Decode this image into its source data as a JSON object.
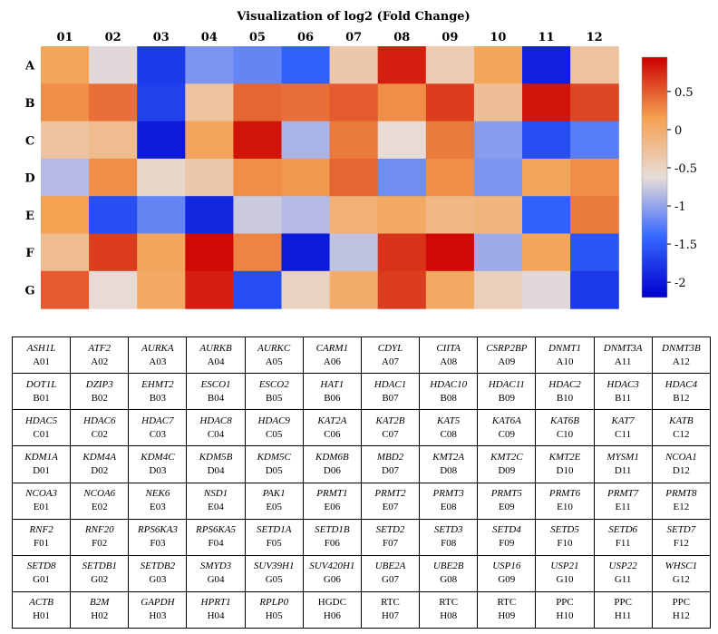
{
  "chart_data": {
    "type": "heatmap",
    "title": "Visualization of log2 (Fold Change)",
    "columns": [
      "01",
      "02",
      "03",
      "04",
      "05",
      "06",
      "07",
      "08",
      "09",
      "10",
      "11",
      "12"
    ],
    "rows": [
      "A",
      "B",
      "C",
      "D",
      "E",
      "F",
      "G"
    ],
    "values": [
      [
        0.1,
        -0.65,
        -1.75,
        -1.1,
        -1.2,
        -1.45,
        -0.35,
        0.8,
        -0.4,
        0.1,
        -1.95,
        -0.3
      ],
      [
        0.25,
        0.4,
        -1.7,
        -0.3,
        0.45,
        0.4,
        0.5,
        0.25,
        0.65,
        -0.25,
        0.85,
        0.6
      ],
      [
        -0.3,
        -0.2,
        -2.0,
        0.1,
        0.85,
        -0.9,
        0.35,
        -0.6,
        0.35,
        -1.05,
        -1.6,
        -1.25
      ],
      [
        -0.85,
        0.25,
        -0.55,
        -0.35,
        0.25,
        0.2,
        0.45,
        -1.15,
        0.25,
        -1.1,
        0.1,
        0.25
      ],
      [
        0.15,
        -1.6,
        -1.2,
        -1.9,
        -0.75,
        -0.85,
        -0.05,
        0.05,
        -0.15,
        -0.1,
        -1.45,
        0.35
      ],
      [
        -0.2,
        0.65,
        0.1,
        0.9,
        0.3,
        -2.0,
        -0.8,
        0.7,
        0.9,
        -0.95,
        0.1,
        -1.55
      ],
      [
        0.5,
        -0.6,
        0.05,
        0.8,
        -1.6,
        -0.5,
        0.0,
        0.65,
        0.05,
        -0.45,
        -0.65,
        -1.75
      ]
    ],
    "zlim": [
      -2.2,
      0.95
    ],
    "colorbar_ticks": [
      0.5,
      0,
      -0.5,
      -1,
      -1.5,
      -2
    ],
    "colorbar_labels": [
      "0.5",
      "0",
      "-0.5",
      "-1",
      "-1.5",
      "-2"
    ],
    "colormap": [
      "#0000cc",
      "#3366ff",
      "#e8dcd8",
      "#f4a050",
      "#cc0000"
    ]
  },
  "plate_map": [
    [
      [
        "ASH1L",
        "A01"
      ],
      [
        "ATF2",
        "A02"
      ],
      [
        "AURKA",
        "A03"
      ],
      [
        "AURKB",
        "A04"
      ],
      [
        "AURKC",
        "A05"
      ],
      [
        "CARM1",
        "A06"
      ],
      [
        "CDYL",
        "A07"
      ],
      [
        "CIITA",
        "A08"
      ],
      [
        "CSRP2BP",
        "A09"
      ],
      [
        "DNMT1",
        "A10"
      ],
      [
        "DNMT3A",
        "A11"
      ],
      [
        "DNMT3B",
        "A12"
      ]
    ],
    [
      [
        "DOT1L",
        "B01"
      ],
      [
        "DZIP3",
        "B02"
      ],
      [
        "EHMT2",
        "B03"
      ],
      [
        "ESCO1",
        "B04"
      ],
      [
        "ESCO2",
        "B05"
      ],
      [
        "HAT1",
        "B06"
      ],
      [
        "HDAC1",
        "B07"
      ],
      [
        "HDAC10",
        "B08"
      ],
      [
        "HDAC11",
        "B09"
      ],
      [
        "HDAC2",
        "B10"
      ],
      [
        "HDAC3",
        "B11"
      ],
      [
        "HDAC4",
        "B12"
      ]
    ],
    [
      [
        "HDAC5",
        "C01"
      ],
      [
        "HDAC6",
        "C02"
      ],
      [
        "HDAC7",
        "C03"
      ],
      [
        "HDAC8",
        "C04"
      ],
      [
        "HDAC9",
        "C05"
      ],
      [
        "KAT2A",
        "C06"
      ],
      [
        "KAT2B",
        "C07"
      ],
      [
        "KAT5",
        "C08"
      ],
      [
        "KAT6A",
        "C09"
      ],
      [
        "KAT6B",
        "C10"
      ],
      [
        "KAT7",
        "C11"
      ],
      [
        "KATB",
        "C12"
      ]
    ],
    [
      [
        "KDM1A",
        "D01"
      ],
      [
        "KDM4A",
        "D02"
      ],
      [
        "KDM4C",
        "D03"
      ],
      [
        "KDM5B",
        "D04"
      ],
      [
        "KDM5C",
        "D05"
      ],
      [
        "KDM6B",
        "D06"
      ],
      [
        "MBD2",
        "D07"
      ],
      [
        "KMT2A",
        "D08"
      ],
      [
        "KMT2C",
        "D09"
      ],
      [
        "KMT2E",
        "D10"
      ],
      [
        "MYSM1",
        "D11"
      ],
      [
        "NCOA1",
        "D12"
      ]
    ],
    [
      [
        "NCOA3",
        "E01"
      ],
      [
        "NCOA6",
        "E02"
      ],
      [
        "NEK6",
        "E03"
      ],
      [
        "NSD1",
        "E04"
      ],
      [
        "PAK1",
        "E05"
      ],
      [
        "PRMT1",
        "E06"
      ],
      [
        "PRMT2",
        "E07"
      ],
      [
        "PRMT3",
        "E08"
      ],
      [
        "PRMT5",
        "E09"
      ],
      [
        "PRMT6",
        "E10"
      ],
      [
        "PRMT7",
        "E11"
      ],
      [
        "PRMT8",
        "E12"
      ]
    ],
    [
      [
        "RNF2",
        "F01"
      ],
      [
        "RNF20",
        "F02"
      ],
      [
        "RPS6KA3",
        "F03"
      ],
      [
        "RPS6KA5",
        "F04"
      ],
      [
        "SETD1A",
        "F05"
      ],
      [
        "SETD1B",
        "F06"
      ],
      [
        "SETD2",
        "F07"
      ],
      [
        "SETD3",
        "F08"
      ],
      [
        "SETD4",
        "F09"
      ],
      [
        "SETD5",
        "F10"
      ],
      [
        "SETD6",
        "F11"
      ],
      [
        "SETD7",
        "F12"
      ]
    ],
    [
      [
        "SETD8",
        "G01"
      ],
      [
        "SETDB1",
        "G02"
      ],
      [
        "SETDB2",
        "G03"
      ],
      [
        "SMYD3",
        "G04"
      ],
      [
        "SUV39H1",
        "G05"
      ],
      [
        "SUV420H1",
        "G06"
      ],
      [
        "UBE2A",
        "G07"
      ],
      [
        "UBE2B",
        "G08"
      ],
      [
        "USP16",
        "G09"
      ],
      [
        "USP21",
        "G10"
      ],
      [
        "USP22",
        "G11"
      ],
      [
        "WHSC1",
        "G12"
      ]
    ],
    [
      [
        "ACTB",
        "H01"
      ],
      [
        "B2M",
        "H02"
      ],
      [
        "GAPDH",
        "H03"
      ],
      [
        "HPRT1",
        "H04"
      ],
      [
        "RPLP0",
        "H05"
      ],
      [
        "HGDC",
        "H06"
      ],
      [
        "RTC",
        "H07"
      ],
      [
        "RTC",
        "H08"
      ],
      [
        "RTC",
        "H09"
      ],
      [
        "PPC",
        "H10"
      ],
      [
        "PPC",
        "H11"
      ],
      [
        "PPC",
        "H12"
      ]
    ]
  ]
}
